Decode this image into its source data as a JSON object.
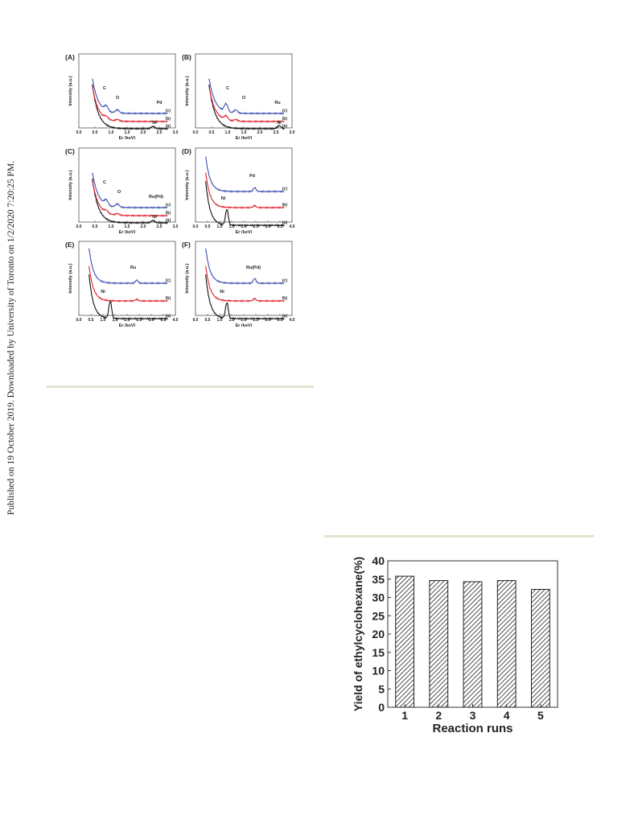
{
  "sidebar": {
    "text": "Published on 19 October 2019. Downloaded by University of Toronto on 1/2/2020 7:20:25 PM."
  },
  "figure_eds": {
    "panels": [
      {
        "label": "(A)",
        "ylabel": "Intensity (a.u.)",
        "xlabel": "Er (keV)",
        "xticks": [
          "0.0",
          "0.5",
          "1.0",
          "1.5",
          "2.0",
          "2.5",
          "3.0"
        ],
        "xmax": 3.0,
        "curves": [
          "(a)",
          "(b)",
          "(c)"
        ],
        "peaks": [
          "C",
          "O",
          "Pd",
          "Ni"
        ]
      },
      {
        "label": "(B)",
        "ylabel": "Intensity (a.u.)",
        "xlabel": "Er (keV)",
        "xticks": [
          "0.0",
          "0.5",
          "1.0",
          "1.5",
          "2.0",
          "2.5",
          "3.0"
        ],
        "xmax": 3.0,
        "curves": [
          "(a)",
          "(b)",
          "(c)"
        ],
        "peaks": [
          "C",
          "O",
          "Ru",
          "Ni"
        ]
      },
      {
        "label": "(C)",
        "ylabel": "Intensity (a.u.)",
        "xlabel": "Er (keV)",
        "xticks": [
          "0.0",
          "0.5",
          "1.0",
          "1.5",
          "2.0",
          "2.5",
          "3.0"
        ],
        "xmax": 3.0,
        "curves": [
          "(a)",
          "(b)",
          "(c)"
        ],
        "peaks": [
          "C",
          "O",
          "Ru(Pd)",
          "Ni"
        ]
      },
      {
        "label": "(D)",
        "ylabel": "Intensity (a.u.)",
        "xlabel": "Er (keV)",
        "xticks": [
          "0.0",
          "0.5",
          "1.0",
          "1.5",
          "2.0",
          "2.5",
          "3.0",
          "3.5",
          "4.0"
        ],
        "xmax": 4.0,
        "curves": [
          "(a)",
          "(b)",
          "(c)"
        ],
        "peaks": [
          "Pd",
          "Ni"
        ]
      },
      {
        "label": "(E)",
        "ylabel": "Intensity (a.u.)",
        "xlabel": "Er (keV)",
        "xticks": [
          "0.0",
          "0.5",
          "1.0",
          "1.5",
          "2.0",
          "2.5",
          "3.0",
          "3.5",
          "4.0"
        ],
        "xmax": 4.0,
        "curves": [
          "(a)",
          "(b)",
          "(c)"
        ],
        "peaks": [
          "Ru",
          "Ni"
        ]
      },
      {
        "label": "(F)",
        "ylabel": "Intensity (a.u.)",
        "xlabel": "Er (keV)",
        "xticks": [
          "0.0",
          "0.5",
          "1.0",
          "1.5",
          "2.0",
          "2.5",
          "3.0",
          "3.5",
          "4.0"
        ],
        "xmax": 4.0,
        "curves": [
          "(a)",
          "(b)",
          "(c)"
        ],
        "peaks": [
          "Ru(Pd)",
          "Ni"
        ]
      }
    ],
    "colors": {
      "a": "#111111",
      "b": "#e0202a",
      "c": "#3b4fb0"
    }
  },
  "chart_data": {
    "type": "bar",
    "categories": [
      "1",
      "2",
      "3",
      "4",
      "5"
    ],
    "values": [
      35.8,
      34.6,
      34.3,
      34.6,
      32.2
    ],
    "xlabel": "Reaction runs",
    "ylabel": "Yield of ethylcyclohexane(%)",
    "ylim": [
      0,
      40
    ],
    "yticks": [
      "0",
      "5",
      "10",
      "15",
      "20",
      "25",
      "30",
      "35",
      "40"
    ],
    "bar_fill": "hatched"
  }
}
